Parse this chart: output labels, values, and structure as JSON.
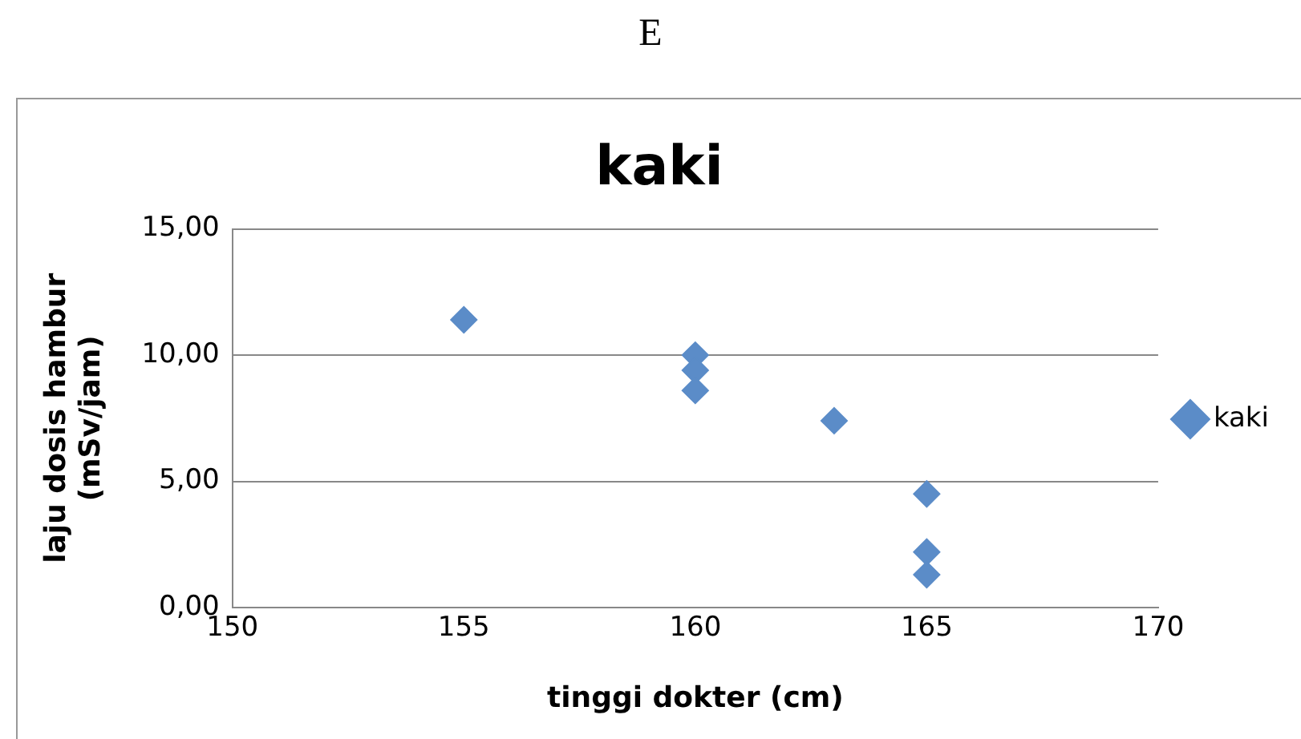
{
  "chart_data": {
    "type": "scatter",
    "title": "kaki",
    "xlabel": "tinggi dokter (cm)",
    "ylabel": "laju dosis hambur (mSv/jam)",
    "annotations": [
      "E"
    ],
    "series": [
      {
        "name": "kaki",
        "color": "#5b8cc8",
        "x": [
          155,
          160,
          160,
          160,
          163,
          165,
          165,
          165
        ],
        "values": [
          11.4,
          10.0,
          9.4,
          8.6,
          7.4,
          4.5,
          2.2,
          1.3
        ]
      }
    ],
    "xlim": [
      150,
      170
    ],
    "xticks": [
      150,
      155,
      160,
      165,
      170
    ],
    "ylim": [
      0,
      15
    ],
    "yticks": [
      {
        "value": 0,
        "label": "0,00"
      },
      {
        "value": 5,
        "label": "5,00"
      },
      {
        "value": 10,
        "label": "10,00"
      },
      {
        "value": 15,
        "label": "15,00"
      }
    ],
    "grid": "y",
    "legend": "right",
    "marker": "diamond"
  }
}
